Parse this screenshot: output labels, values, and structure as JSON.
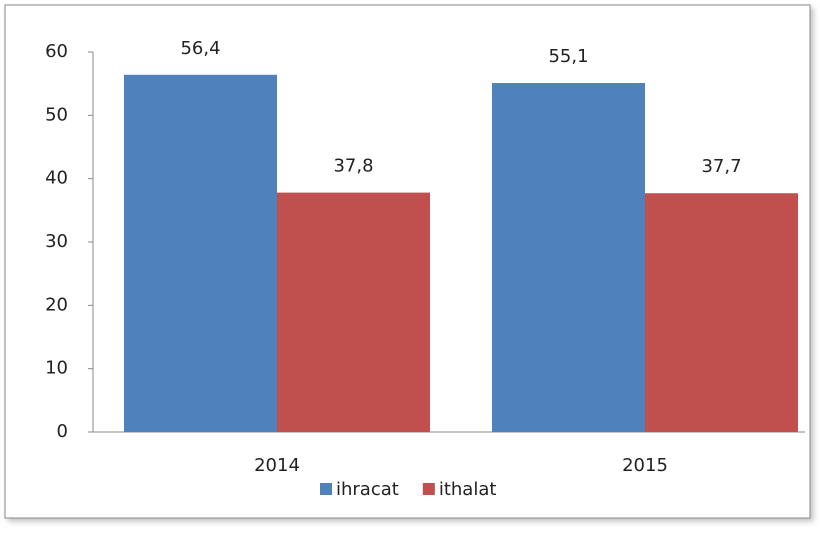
{
  "chart_data": {
    "type": "bar",
    "categories": [
      "2014",
      "2015"
    ],
    "series": [
      {
        "name": "ihracat",
        "color": "#4f81bd",
        "values": [
          56.4,
          55.1
        ],
        "value_labels": [
          "56,4",
          "55,1"
        ]
      },
      {
        "name": "ithalat",
        "color": "#c0504d",
        "values": [
          37.8,
          37.7
        ],
        "value_labels": [
          "37,8",
          "37,7"
        ]
      }
    ],
    "ylim": [
      0,
      60
    ],
    "yticks": [
      0,
      10,
      20,
      30,
      40,
      50,
      60
    ],
    "grid": false,
    "legend": "bottom"
  }
}
